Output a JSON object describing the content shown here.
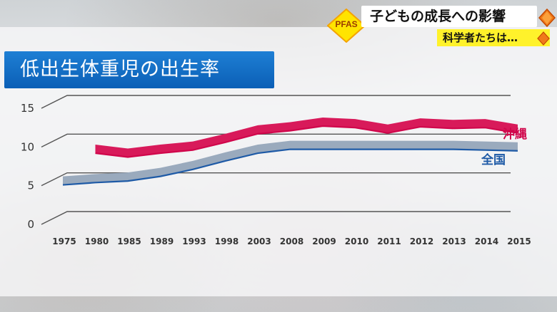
{
  "topic_badge": "PFAS",
  "headline": "子どもの成長への影響",
  "subline": "科学者たちは…",
  "chart_data": {
    "type": "area",
    "title": "低出生体重児の出生率",
    "categories": [
      "1975",
      "1980",
      "1985",
      "1989",
      "1993",
      "1998",
      "2003",
      "2008",
      "2009",
      "2010",
      "2011",
      "2012",
      "2013",
      "2014",
      "2015"
    ],
    "series": [
      {
        "name": "沖縄",
        "color": "#d0064b",
        "values": [
          null,
          9.2,
          8.7,
          9.2,
          9.6,
          10.6,
          11.7,
          12.1,
          12.7,
          12.5,
          11.8,
          12.6,
          12.4,
          12.5,
          11.8
        ]
      },
      {
        "name": "全国",
        "color": "#1e5aa6",
        "values": [
          5.1,
          5.4,
          5.6,
          6.2,
          7.1,
          8.2,
          9.2,
          9.7,
          9.7,
          9.7,
          9.7,
          9.7,
          9.7,
          9.6,
          9.5
        ]
      }
    ],
    "yticks": [
      0,
      5,
      10,
      15
    ],
    "ylim": [
      0,
      15
    ]
  }
}
